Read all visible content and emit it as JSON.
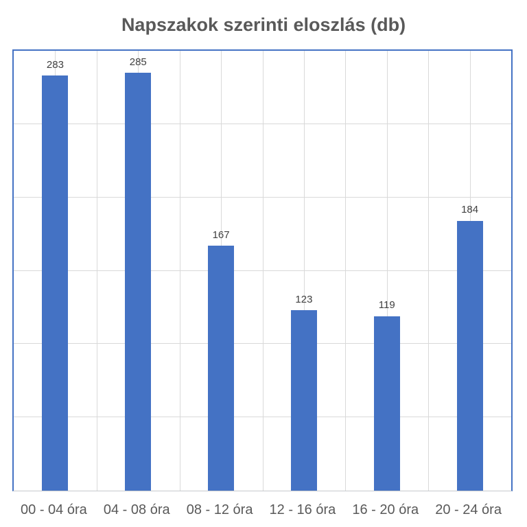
{
  "title": "Napszakok szerinti eloszlás (db)",
  "chart_data": {
    "type": "bar",
    "title": "Napszakok szerinti eloszlás (db)",
    "categories": [
      "00 - 04 óra",
      "04 - 08 óra",
      "08 - 12 óra",
      "12 - 16 óra",
      "16 - 20 óra",
      "20 - 24 óra"
    ],
    "values": [
      283,
      285,
      167,
      123,
      119,
      184
    ],
    "data_labels": [
      283,
      285,
      167,
      123,
      119,
      184
    ],
    "xlabel": "",
    "ylabel": "",
    "ylim": [
      0,
      300
    ],
    "y_grid_step": 50,
    "x_grid": "category-half-steps",
    "grid": true,
    "legend": "none",
    "y_axis_tick_labels_visible": false
  },
  "colors": {
    "bar": "#4472C4",
    "plot_border": "#4472C4",
    "gridline": "#D9D9D9",
    "axis_line": "#C6C9CC",
    "title_text": "#595959",
    "value_label_text": "#404040",
    "category_label_text": "#595959",
    "background": "#FFFFFF"
  }
}
